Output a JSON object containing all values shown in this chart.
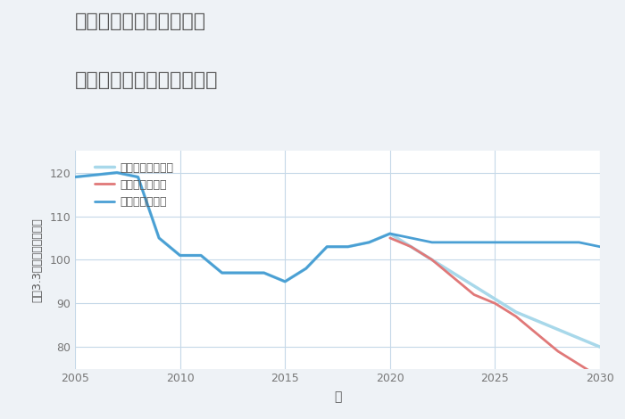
{
  "title_line1": "奈良県橿原市東坊城町の",
  "title_line2": "中古マンションの価格推移",
  "xlabel": "年",
  "ylabel": "平（3.3㎡）単価（万円）",
  "background_color": "#eef2f6",
  "plot_bg_color": "#ffffff",
  "grid_color": "#c5d8e8",
  "title_color": "#555555",
  "tick_color": "#777777",
  "xlabel_color": "#555555",
  "ylabel_color": "#555555",
  "xlim": [
    2005,
    2030
  ],
  "ylim": [
    75,
    125
  ],
  "xticks": [
    2005,
    2010,
    2015,
    2020,
    2025,
    2030
  ],
  "yticks": [
    80,
    90,
    100,
    110,
    120
  ],
  "good_scenario": {
    "label": "グッドシナリオ",
    "color": "#4a9fd4",
    "linewidth": 2.0,
    "years": [
      2005,
      2007,
      2008,
      2009,
      2010,
      2011,
      2012,
      2013,
      2014,
      2015,
      2016,
      2017,
      2018,
      2019,
      2020,
      2021,
      2022,
      2023,
      2024,
      2025,
      2026,
      2027,
      2028,
      2029,
      2030
    ],
    "values": [
      119,
      120,
      119,
      105,
      101,
      101,
      97,
      97,
      97,
      95,
      98,
      103,
      103,
      104,
      106,
      105,
      104,
      104,
      104,
      104,
      104,
      104,
      104,
      104,
      103
    ]
  },
  "bad_scenario": {
    "label": "バッドシナリオ",
    "color": "#e07878",
    "linewidth": 2.0,
    "years": [
      2020,
      2021,
      2022,
      2023,
      2024,
      2025,
      2026,
      2027,
      2028,
      2029,
      2030
    ],
    "values": [
      105,
      103,
      100,
      96,
      92,
      90,
      87,
      83,
      79,
      76,
      73
    ]
  },
  "normal_scenario": {
    "label": "ノーマルシナリオ",
    "color": "#a8d8ea",
    "linewidth": 2.5,
    "years": [
      2005,
      2007,
      2008,
      2009,
      2010,
      2011,
      2012,
      2013,
      2014,
      2015,
      2016,
      2017,
      2018,
      2019,
      2020,
      2021,
      2022,
      2023,
      2024,
      2025,
      2026,
      2027,
      2028,
      2029,
      2030
    ],
    "values": [
      119,
      120,
      119,
      105,
      101,
      101,
      97,
      97,
      97,
      95,
      98,
      103,
      103,
      104,
      106,
      103,
      100,
      97,
      94,
      91,
      88,
      86,
      84,
      82,
      80
    ]
  }
}
